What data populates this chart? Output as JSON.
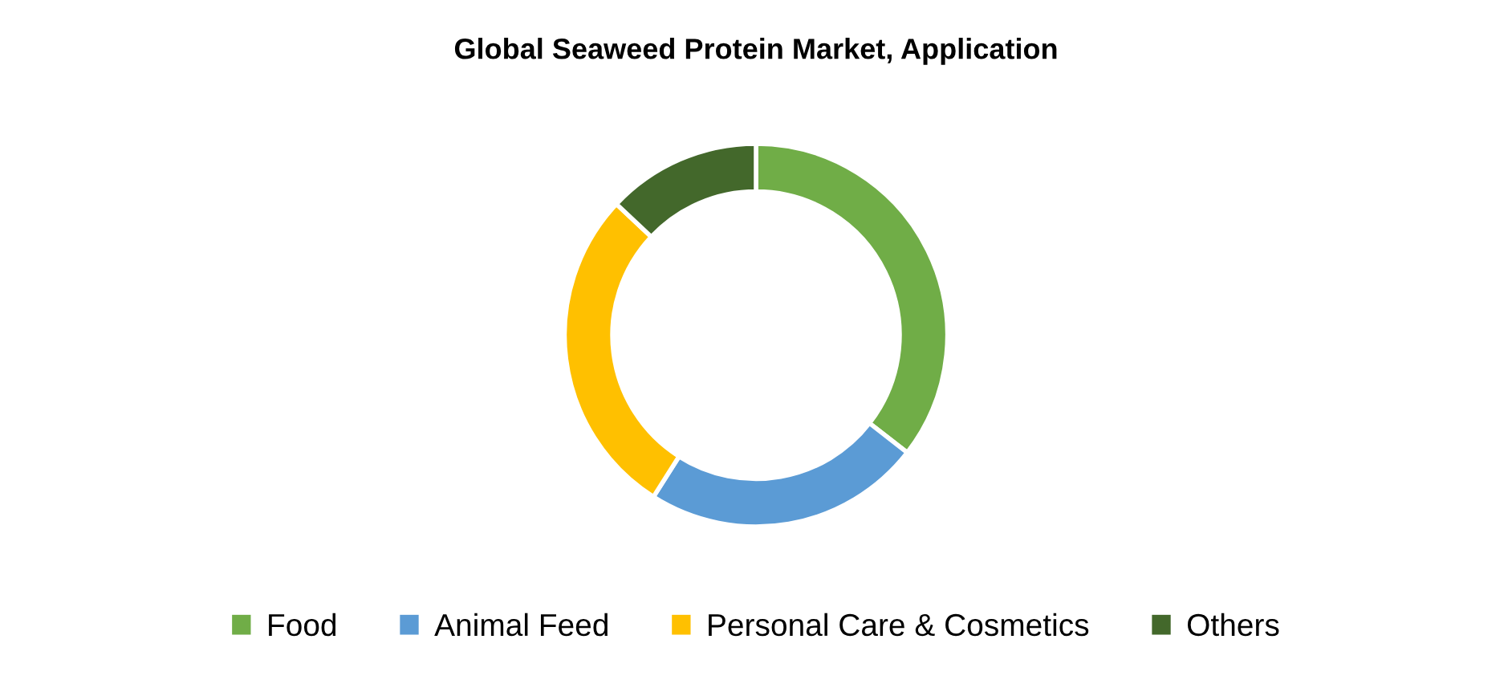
{
  "chart_data": {
    "type": "donut",
    "title": "Global Seaweed Protein Market, Application",
    "categories": [
      "Food",
      "Animal Feed",
      "Personal Care & Cosmetics",
      "Others"
    ],
    "values": [
      35.5,
      23.5,
      28,
      13
    ],
    "colors": [
      "#70ad47",
      "#5b9bd5",
      "#ffc000",
      "#43682b"
    ],
    "legend": "bottom"
  }
}
